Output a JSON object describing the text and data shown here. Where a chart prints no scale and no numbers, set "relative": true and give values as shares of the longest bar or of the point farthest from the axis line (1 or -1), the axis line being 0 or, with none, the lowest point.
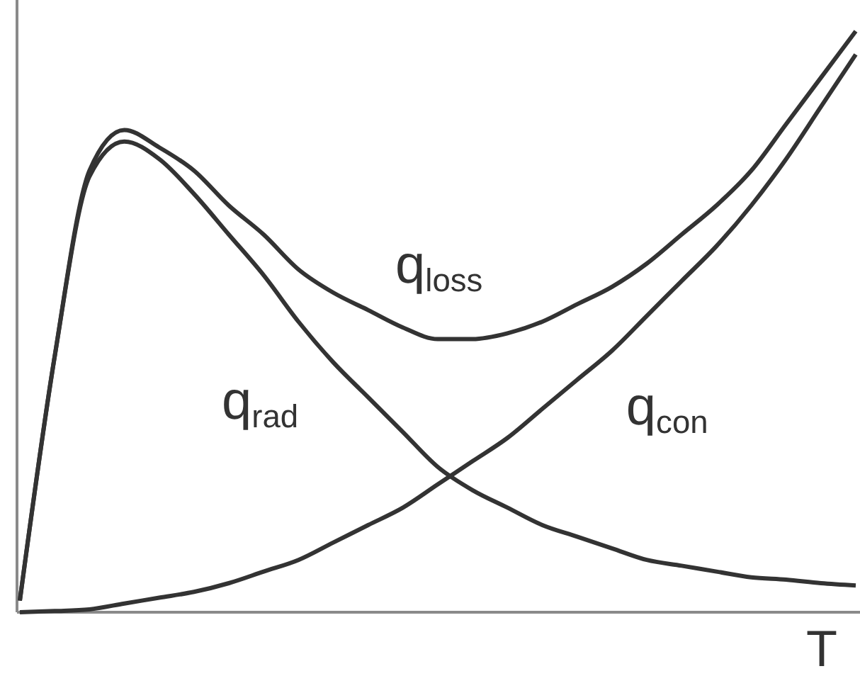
{
  "chart_data": {
    "type": "line",
    "relative": true,
    "xlabel": "T",
    "legend": false,
    "marker": "none",
    "line_style": "solid",
    "categories": [
      null,
      null,
      null,
      null,
      null,
      null,
      null,
      null,
      null,
      null,
      null,
      null,
      null,
      null,
      null,
      null,
      null,
      null,
      null,
      null,
      null,
      null,
      null,
      null,
      null
    ],
    "series": [
      {
        "name": "q$_{loss}$",
        "color": "#333333",
        "values": [
          0.02,
          0.44,
          0.76,
          0.83,
          0.8,
          0.76,
          0.7,
          0.65,
          0.59,
          0.55,
          0.52,
          0.49,
          0.47,
          0.47,
          0.48,
          0.5,
          0.53,
          0.56,
          0.6,
          0.65,
          0.7,
          0.76,
          0.84,
          0.92,
          1
        ]
      },
      {
        "name": "q$_{rad}$",
        "color": "#333333",
        "values": [
          0.02,
          0.44,
          0.75,
          0.81,
          0.78,
          0.72,
          0.65,
          0.58,
          0.5,
          0.43,
          0.37,
          0.31,
          0.25,
          0.21,
          0.18,
          0.15,
          0.13,
          0.11,
          0.09,
          0.08,
          0.07,
          0.06,
          0.056,
          0.05,
          0.046
        ]
      },
      {
        "name": "q$_{con}$",
        "color": "#333333",
        "values": [
          0,
          0.002,
          0.005,
          0.015,
          0.025,
          0.035,
          0.05,
          0.07,
          0.09,
          0.12,
          0.15,
          0.18,
          0.22,
          0.26,
          0.3,
          0.35,
          0.4,
          0.45,
          0.51,
          0.57,
          0.63,
          0.7,
          0.78,
          0.87,
          0.96
        ]
      }
    ]
  }
}
